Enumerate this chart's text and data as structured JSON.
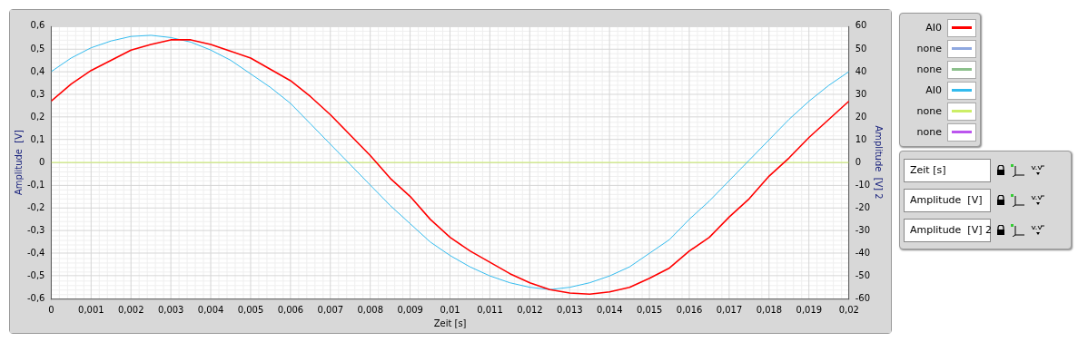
{
  "chart_data": {
    "type": "line",
    "xlabel": "Zeit [s]",
    "ylabel": "Amplitude  [V]",
    "y2label": "Amplitude  [V] 2",
    "x": [
      0,
      0.0005,
      0.001,
      0.0015,
      0.002,
      0.0025,
      0.003,
      0.0035,
      0.004,
      0.0045,
      0.005,
      0.0055,
      0.006,
      0.0065,
      0.007,
      0.0075,
      0.008,
      0.0085,
      0.009,
      0.0095,
      0.01,
      0.0105,
      0.011,
      0.0115,
      0.012,
      0.0125,
      0.013,
      0.0135,
      0.014,
      0.0145,
      0.015,
      0.0155,
      0.016,
      0.0165,
      0.017,
      0.0175,
      0.018,
      0.0185,
      0.019,
      0.0195,
      0.02
    ],
    "series": [
      {
        "name": "AI0",
        "color": "#ff0000",
        "values": [
          0.27,
          0.345,
          0.405,
          0.45,
          0.495,
          0.52,
          0.54,
          0.54,
          0.52,
          0.49,
          0.46,
          0.41,
          0.36,
          0.29,
          0.21,
          0.12,
          0.03,
          -0.07,
          -0.15,
          -0.25,
          -0.33,
          -0.39,
          -0.44,
          -0.49,
          -0.53,
          -0.56,
          -0.575,
          -0.58,
          -0.57,
          -0.55,
          -0.51,
          -0.465,
          -0.39,
          -0.33,
          -0.24,
          -0.16,
          -0.06,
          0.02,
          0.11,
          0.19,
          0.27
        ]
      },
      {
        "name": "none",
        "color": "#8fa8e0",
        "values": [
          null,
          null,
          null,
          null,
          null,
          null,
          null,
          null,
          null,
          null,
          null,
          null,
          null,
          null,
          null,
          null,
          null,
          null,
          null,
          null,
          null,
          null,
          null,
          null,
          null,
          null,
          null,
          null,
          null,
          null,
          null,
          null,
          null,
          null,
          null,
          null,
          null,
          null,
          null,
          null,
          null
        ]
      },
      {
        "name": "none",
        "color": "#8cc08c",
        "values": [
          null,
          null,
          null,
          null,
          null,
          null,
          null,
          null,
          null,
          null,
          null,
          null,
          null,
          null,
          null,
          null,
          null,
          null,
          null,
          null,
          null,
          null,
          null,
          null,
          null,
          null,
          null,
          null,
          null,
          null,
          null,
          null,
          null,
          null,
          null,
          null,
          null,
          null,
          null,
          null,
          null
        ]
      },
      {
        "name": "AI0",
        "color": "#33bbee",
        "axis": "y2",
        "values": [
          40,
          46,
          50.5,
          53.5,
          55.5,
          56,
          55,
          53,
          49.5,
          45,
          39,
          33,
          26,
          17,
          8,
          -1,
          -10,
          -19,
          -27,
          -35,
          -41,
          -46,
          -50,
          -53,
          -55,
          -56,
          -55,
          -53,
          -50,
          -46,
          -40,
          -34,
          -25,
          -17,
          -8,
          1,
          10,
          19,
          27,
          34,
          40
        ]
      },
      {
        "name": "none",
        "color": "#ccee66",
        "values": [
          0,
          0,
          0,
          0,
          0,
          0,
          0,
          0,
          0,
          0,
          0,
          0,
          0,
          0,
          0,
          0,
          0,
          0,
          0,
          0,
          0,
          0,
          0,
          0,
          0,
          0,
          0,
          0,
          0,
          0,
          0,
          0,
          0,
          0,
          0,
          0,
          0,
          0,
          0,
          0,
          0
        ]
      },
      {
        "name": "none",
        "color": "#bb55ee",
        "values": [
          null,
          null,
          null,
          null,
          null,
          null,
          null,
          null,
          null,
          null,
          null,
          null,
          null,
          null,
          null,
          null,
          null,
          null,
          null,
          null,
          null,
          null,
          null,
          null,
          null,
          null,
          null,
          null,
          null,
          null,
          null,
          null,
          null,
          null,
          null,
          null,
          null,
          null,
          null,
          null,
          null
        ]
      }
    ],
    "xlim": [
      0,
      0.02
    ],
    "xticks": [
      0,
      {
        "value": 0.001,
        "label": "0,001"
      },
      {
        "value": 0.002,
        "label": "0,002"
      },
      {
        "value": 0.003,
        "label": "0,003"
      },
      {
        "value": 0.004,
        "label": "0,004"
      },
      {
        "value": 0.005,
        "label": "0,005"
      },
      {
        "value": 0.006,
        "label": "0,006"
      },
      {
        "value": 0.007,
        "label": "0,007"
      },
      {
        "value": 0.008,
        "label": "0,008"
      },
      {
        "value": 0.009,
        "label": "0,009"
      },
      {
        "value": 0.01,
        "label": "0,01"
      },
      {
        "value": 0.011,
        "label": "0,011"
      },
      {
        "value": 0.012,
        "label": "0,012"
      },
      {
        "value": 0.013,
        "label": "0,013"
      },
      {
        "value": 0.014,
        "label": "0,014"
      },
      {
        "value": 0.015,
        "label": "0,015"
      },
      {
        "value": 0.016,
        "label": "0,016"
      },
      {
        "value": 0.017,
        "label": "0,017"
      },
      {
        "value": 0.018,
        "label": "0,018"
      },
      {
        "value": 0.019,
        "label": "0,019"
      },
      {
        "value": 0.02,
        "label": "0,02"
      }
    ],
    "ylim": [
      -0.6,
      0.6
    ],
    "yticks": [
      {
        "value": -0.6,
        "label": "-0,6"
      },
      {
        "value": -0.5,
        "label": "-0,5"
      },
      {
        "value": -0.4,
        "label": "-0,4"
      },
      {
        "value": -0.3,
        "label": "-0,3"
      },
      {
        "value": -0.2,
        "label": "-0,2"
      },
      {
        "value": -0.1,
        "label": "-0,1"
      },
      0,
      {
        "value": 0.1,
        "label": "0,1"
      },
      {
        "value": 0.2,
        "label": "0,2"
      },
      {
        "value": 0.3,
        "label": "0,3"
      },
      {
        "value": 0.4,
        "label": "0,4"
      },
      {
        "value": 0.5,
        "label": "0,5"
      },
      {
        "value": 0.6,
        "label": "0,6"
      }
    ],
    "y2lim": [
      -60,
      60
    ],
    "y2ticks": [
      -60,
      -50,
      -40,
      -30,
      -20,
      -10,
      0,
      10,
      20,
      30,
      40,
      50,
      60
    ],
    "grid": true,
    "legend": "right",
    "marker": "none",
    "line_style": "solid",
    "annotations": [
      "Zeit [s]",
      "Amplitude  [V]",
      "Amplitude  [V] 2"
    ]
  }
}
